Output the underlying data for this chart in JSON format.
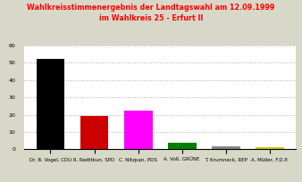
{
  "title_line1": "Wahlkreisstimmenergebnis der Landtagswahl am 12.09.1999",
  "title_line2": "im Wahlkreis 25 - Erfurt II",
  "title_color": "#ff0000",
  "categories": [
    "Dr. B. Vogel, CDU",
    "R. Redttkun, SPD",
    "C. Nitzpan, PDS",
    "A. Voß, GRÜNE",
    "T. Krumneck, REP",
    "A. Müller, F.D.P."
  ],
  "values": [
    52.5,
    19.0,
    22.5,
    4.0,
    1.5,
    1.2
  ],
  "bar_colors": [
    "#000000",
    "#cc0000",
    "#ff00ff",
    "#008000",
    "#888888",
    "#cccc00"
  ],
  "ylim": [
    0,
    60
  ],
  "yticks": [
    0,
    10,
    20,
    30,
    40,
    50,
    60
  ],
  "background_color": "#d8d8c8",
  "plot_bg_color": "#ffffff",
  "grid_color": "#aaaaaa",
  "label_fontsize": 4.0,
  "title_fontsize": 5.8,
  "ylabel_fontsize": 4.5
}
